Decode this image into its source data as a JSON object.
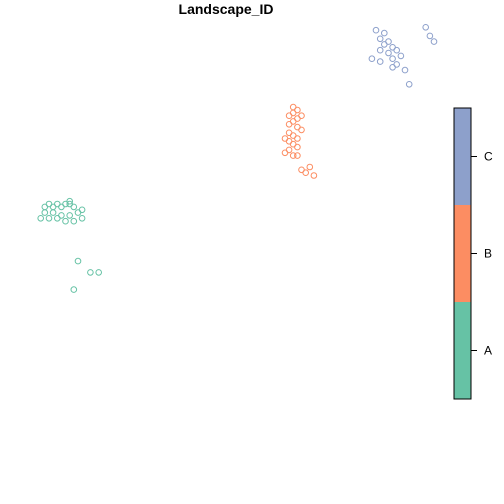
{
  "chart_data": {
    "type": "scatter",
    "title": "Landscape_ID",
    "xlabel": "",
    "ylabel": "",
    "axes_visible": false,
    "grid": false,
    "legend": {
      "type": "color-bar",
      "placement": "right",
      "entries": [
        {
          "label": "A",
          "color": "#66C2A5"
        },
        {
          "label": "B",
          "color": "#FC8D62"
        },
        {
          "label": "C",
          "color": "#8DA0CB"
        }
      ]
    },
    "xlim": [
      0,
      100
    ],
    "ylim": [
      0,
      100
    ],
    "series": [
      {
        "name": "A",
        "color": "#66C2A5",
        "points": [
          [
            6,
            66
          ],
          [
            7,
            67
          ],
          [
            8,
            66
          ],
          [
            9,
            67
          ],
          [
            10,
            66
          ],
          [
            11,
            67
          ],
          [
            12,
            67
          ],
          [
            13,
            66
          ],
          [
            12,
            68
          ],
          [
            6,
            64
          ],
          [
            8,
            64
          ],
          [
            10,
            63
          ],
          [
            12,
            63
          ],
          [
            14,
            64
          ],
          [
            15,
            65
          ],
          [
            5,
            62
          ],
          [
            7,
            62
          ],
          [
            9,
            62
          ],
          [
            11,
            61
          ],
          [
            13,
            61
          ],
          [
            15,
            62
          ],
          [
            14,
            47
          ],
          [
            17,
            43
          ],
          [
            19,
            43
          ],
          [
            13,
            37
          ]
        ]
      },
      {
        "name": "B",
        "color": "#FC8D62",
        "points": [
          [
            66,
            101
          ],
          [
            67,
            100
          ],
          [
            66,
            99
          ],
          [
            65,
            98
          ],
          [
            67,
            97
          ],
          [
            68,
            98
          ],
          [
            66,
            96
          ],
          [
            65,
            95
          ],
          [
            67,
            94
          ],
          [
            68,
            93
          ],
          [
            65,
            92
          ],
          [
            66,
            91
          ],
          [
            67,
            90
          ],
          [
            65,
            89
          ],
          [
            64,
            90
          ],
          [
            66,
            88
          ],
          [
            67,
            87
          ],
          [
            65,
            86
          ],
          [
            64,
            85
          ],
          [
            66,
            84
          ],
          [
            67,
            84
          ],
          [
            68,
            79
          ],
          [
            70,
            80
          ],
          [
            69,
            78
          ],
          [
            71,
            77
          ]
        ]
      },
      {
        "name": "C",
        "color": "#8DA0CB",
        "points": [
          [
            86,
            128
          ],
          [
            88,
            127
          ],
          [
            87,
            125
          ],
          [
            89,
            124
          ],
          [
            88,
            123
          ],
          [
            90,
            122
          ],
          [
            91,
            121
          ],
          [
            87,
            121
          ],
          [
            89,
            120
          ],
          [
            90,
            118
          ],
          [
            92,
            119
          ],
          [
            91,
            116
          ],
          [
            90,
            115
          ],
          [
            87,
            117
          ],
          [
            85,
            118
          ],
          [
            93,
            114
          ],
          [
            94,
            109
          ],
          [
            98,
            129
          ],
          [
            99,
            126
          ],
          [
            100,
            124
          ]
        ]
      }
    ]
  }
}
